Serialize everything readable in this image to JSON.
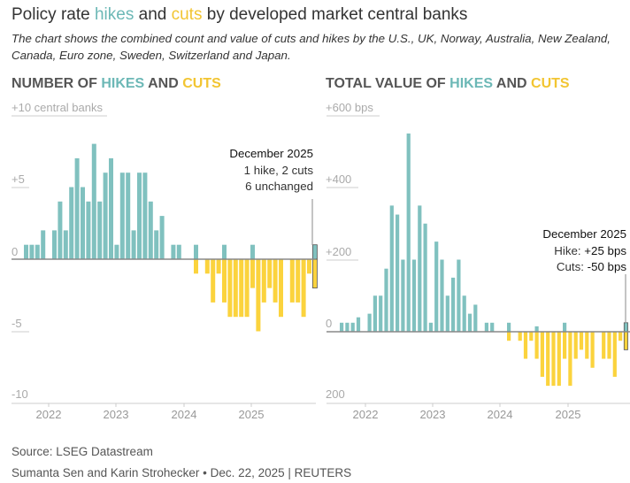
{
  "title": {
    "prefix": "Policy rate ",
    "hikes": "hikes",
    "and": " and ",
    "cuts": "cuts",
    "suffix": " by developed market central banks"
  },
  "subtitle": [
    "The chart shows the combined count and value of cuts and hikes by the U.S., UK, Norway, Australia, New Zealand,",
    "Canada, Euro zone, Sweden, Switzerland and Japan."
  ],
  "colors": {
    "hike": "#80c1bf",
    "cut": "#fbd33d",
    "zero_line": "#888888",
    "grid": "#cccccc"
  },
  "source": "Source: LSEG Datastream",
  "credit": "Sumanta Sen and Karin Strohecker • Dec. 22, 2025 | REUTERS",
  "chart_data": [
    {
      "type": "bar",
      "title": {
        "prefix": "NUMBER OF ",
        "hikes": "HIKES",
        "and": " AND ",
        "cuts": "CUTS"
      },
      "ylabel": "central banks",
      "ylim": [
        -10,
        10
      ],
      "yticks": [
        "+10 central banks",
        "+5",
        "0",
        "-5",
        "-10"
      ],
      "x_range": "Sep 2021 - Dec 2025 (monthly)",
      "xticks": [
        "2022",
        "2023",
        "2024",
        "2025"
      ],
      "series": [
        {
          "name": "hikes",
          "values": [
            1,
            1,
            1,
            2,
            0,
            2,
            4,
            2,
            5,
            7,
            5,
            4,
            8,
            4,
            6,
            7,
            1,
            6,
            6,
            2,
            6,
            6,
            4,
            2,
            3,
            0,
            1,
            1,
            0,
            0,
            1,
            0,
            0,
            0,
            0,
            1,
            0,
            0,
            0,
            0,
            1,
            0,
            0,
            0,
            0,
            0,
            0,
            0,
            0,
            0,
            0,
            1
          ]
        },
        {
          "name": "cuts",
          "values": [
            0,
            0,
            0,
            0,
            0,
            0,
            0,
            0,
            0,
            0,
            0,
            0,
            0,
            0,
            0,
            0,
            0,
            0,
            0,
            0,
            0,
            0,
            0,
            0,
            0,
            0,
            0,
            0,
            0,
            0,
            1,
            0,
            1,
            3,
            1,
            3,
            4,
            4,
            4,
            4,
            2,
            5,
            3,
            2,
            3,
            4,
            0,
            3,
            3,
            4,
            1,
            2
          ]
        }
      ],
      "annotation": {
        "title": "December 2025",
        "lines": [
          "1 hike, 2 cuts",
          "6 unchanged"
        ]
      }
    },
    {
      "type": "bar",
      "title": {
        "prefix": "TOTAL VALUE OF ",
        "hikes": "HIKES",
        "and": " AND ",
        "cuts": "CUTS"
      },
      "ylabel": "bps",
      "ylim": [
        -200,
        600
      ],
      "yticks": [
        "+600 bps",
        "+400",
        "+200",
        "0",
        "200"
      ],
      "x_range": "Sep 2021 - Dec 2025 (monthly)",
      "xticks": [
        "2022",
        "2023",
        "2024",
        "2025"
      ],
      "series": [
        {
          "name": "hikes",
          "values": [
            25,
            25,
            25,
            40,
            0,
            50,
            100,
            100,
            175,
            350,
            325,
            200,
            550,
            200,
            350,
            300,
            25,
            250,
            200,
            100,
            150,
            200,
            100,
            50,
            75,
            0,
            25,
            25,
            0,
            0,
            25,
            0,
            0,
            0,
            0,
            15,
            0,
            0,
            0,
            0,
            25,
            0,
            0,
            0,
            0,
            0,
            0,
            0,
            0,
            0,
            0,
            25
          ]
        },
        {
          "name": "cuts",
          "values": [
            0,
            0,
            0,
            0,
            0,
            0,
            0,
            0,
            0,
            0,
            0,
            0,
            0,
            0,
            0,
            0,
            0,
            0,
            0,
            0,
            0,
            0,
            0,
            0,
            0,
            0,
            0,
            0,
            0,
            0,
            25,
            0,
            25,
            75,
            25,
            75,
            125,
            150,
            150,
            150,
            75,
            150,
            75,
            50,
            75,
            100,
            0,
            75,
            75,
            125,
            25,
            50
          ]
        }
      ],
      "annotation": {
        "title": "December 2025",
        "hike_label": "Hike: ",
        "hike_value": "+25 bps",
        "cut_label": "Cuts: ",
        "cut_value": "-50 bps"
      }
    }
  ]
}
